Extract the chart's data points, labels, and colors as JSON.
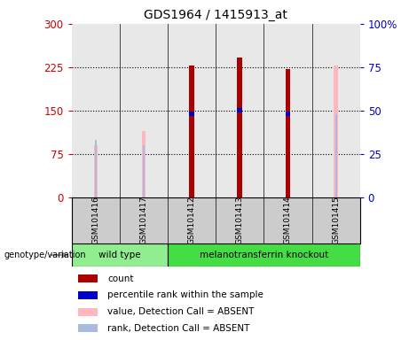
{
  "title": "GDS1964 / 1415913_at",
  "samples": [
    "GSM101416",
    "GSM101417",
    "GSM101412",
    "GSM101413",
    "GSM101414",
    "GSM101415"
  ],
  "count_values": [
    null,
    null,
    228,
    242,
    222,
    null
  ],
  "percentile_values": [
    null,
    null,
    48,
    50,
    48,
    null
  ],
  "absent_value": [
    90,
    115,
    null,
    null,
    null,
    228
  ],
  "absent_rank": [
    33,
    30,
    null,
    null,
    null,
    48
  ],
  "ylim_left": [
    0,
    300
  ],
  "ylim_right": [
    0,
    100
  ],
  "yticks_left": [
    0,
    75,
    150,
    225,
    300
  ],
  "yticks_right": [
    0,
    25,
    50,
    75,
    100
  ],
  "left_tick_color": "#CC0000",
  "right_tick_color": "#0000CC",
  "count_color": "#AA0000",
  "percentile_color": "#0000CC",
  "absent_value_color": "#FFB6C1",
  "absent_rank_color": "#AABBDD",
  "bg_plot": "#E8E8E8",
  "bg_label": "#CCCCCC",
  "bg_group_wt": "#90EE90",
  "bg_group_ko": "#44DD44",
  "thin_bar_width": 0.08,
  "thick_bar_width": 0.18,
  "marker_size": 5,
  "legend_items": [
    {
      "color": "#AA0000",
      "label": "count"
    },
    {
      "color": "#0000CC",
      "label": "percentile rank within the sample"
    },
    {
      "color": "#FFB6C1",
      "label": "value, Detection Call = ABSENT"
    },
    {
      "color": "#AABBDD",
      "label": "rank, Detection Call = ABSENT"
    }
  ]
}
